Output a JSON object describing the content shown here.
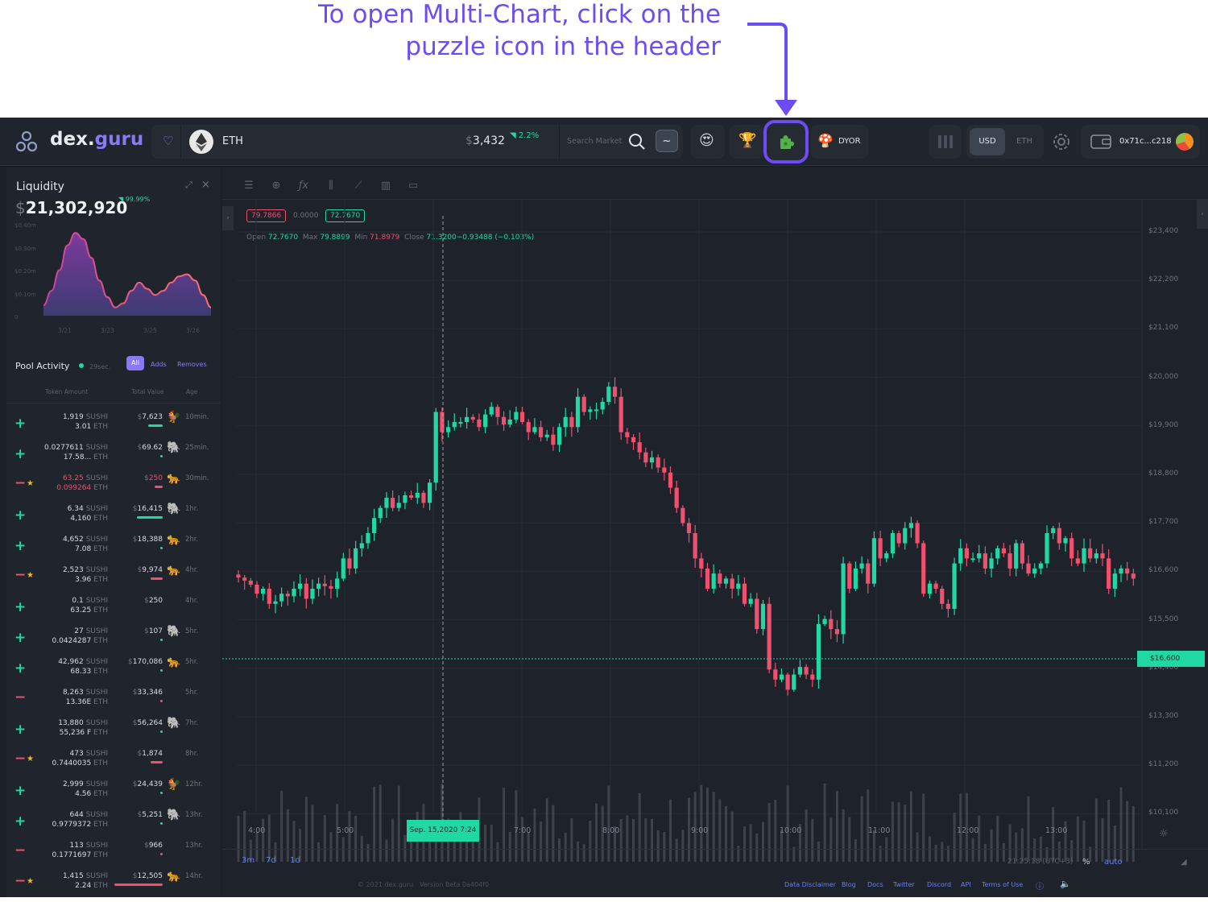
{
  "annotation": {
    "line1": "To open Multi-Chart, click on the",
    "line2": "puzzle  icon in the header",
    "color": "#6b4cf5"
  },
  "header": {
    "logo_main": "dex.",
    "logo_accent": "guru",
    "token": "ETH",
    "price_prefix": "$",
    "price": "3,432",
    "change": "2.2%",
    "search_placeholder": "Search Market",
    "dyor": "DYOR",
    "usd": "USD",
    "eth": "ETH",
    "wallet": "0x71c...c218"
  },
  "liquidity": {
    "title": "Liquidity",
    "currency": "$",
    "value": "21,302,920",
    "change": "99.99%",
    "y_ticks": [
      "$0.40m",
      "$0.30m",
      "$0.20m",
      "$0.10m",
      "0"
    ],
    "x_ticks": [
      "3/21",
      "3/23",
      "3/25",
      "3/26"
    ],
    "series": [
      0.05,
      0.12,
      0.22,
      0.34,
      0.4,
      0.37,
      0.28,
      0.17,
      0.09,
      0.04,
      0.06,
      0.12,
      0.16,
      0.13,
      0.1,
      0.12,
      0.16,
      0.19,
      0.2,
      0.17,
      0.1,
      0.04
    ]
  },
  "pool": {
    "title": "Pool Activity",
    "timer": "29sec.",
    "tab_all": "All",
    "tab_adds": "Adds",
    "tab_removes": "Removes",
    "col_token": "Token Amount",
    "col_total": "Total Value",
    "col_age": "Age",
    "rows": [
      {
        "type": "add",
        "star": false,
        "a1": "1,919",
        "u1": "SUSHI",
        "a2": "3.01",
        "u2": "ETH",
        "cur": "$",
        "val": "7,623",
        "bar": 18,
        "emoji": "🐓",
        "age": "10min."
      },
      {
        "type": "add",
        "star": false,
        "a1": "0.0277611",
        "u1": "SUSHI",
        "a2": "17.58...",
        "u2": "ETH",
        "cur": "$",
        "val": "69.62",
        "bar": 3,
        "emoji": "🐘",
        "age": "25min."
      },
      {
        "type": "remove",
        "star": true,
        "a1": "63.25",
        "u1": "SUSHI",
        "a2": "0.099264",
        "u2": "ETH",
        "cur": "$",
        "val": "250",
        "bar": 10,
        "emoji": "🐆",
        "age": "30min."
      },
      {
        "type": "add",
        "star": false,
        "a1": "6.34",
        "u1": "SUSHI",
        "a2": "4,160",
        "u2": "ETH",
        "cur": "$",
        "val": "16,415",
        "bar": 32,
        "emoji": "🐘",
        "age": "1hr."
      },
      {
        "type": "add",
        "star": false,
        "a1": "4,652",
        "u1": "SUSHI",
        "a2": "7.08",
        "u2": "ETH",
        "cur": "$",
        "val": "18,388",
        "bar": 3,
        "emoji": "🐆",
        "age": "2hr."
      },
      {
        "type": "remove",
        "star": true,
        "a1": "2,523",
        "u1": "SUSHI",
        "a2": "3.96",
        "u2": "ETH",
        "cur": "$",
        "val": "9,974",
        "bar": 15,
        "emoji": "🐆",
        "age": "4hr."
      },
      {
        "type": "add",
        "star": false,
        "a1": "0.1",
        "u1": "SUSHI",
        "a2": "63.25",
        "u2": "ETH",
        "cur": "$",
        "val": "250",
        "bar": 0,
        "emoji": "",
        "age": "4hr."
      },
      {
        "type": "add",
        "star": false,
        "a1": "27",
        "u1": "SUSHI",
        "a2": "0.0424287",
        "u2": "ETH",
        "cur": "$",
        "val": "107",
        "bar": 3,
        "emoji": "🐘",
        "age": "5hr."
      },
      {
        "type": "add",
        "star": false,
        "a1": "42,962",
        "u1": "SUSHI",
        "a2": "68.33",
        "u2": "ETH",
        "cur": "$",
        "val": "170,086",
        "bar": 3,
        "emoji": "🐆",
        "age": "5hr."
      },
      {
        "type": "remove",
        "star": false,
        "a1": "8,263",
        "u1": "SUSHI",
        "a2": "13.36E",
        "u2": "ETH",
        "cur": "$",
        "val": "33,346",
        "bar": 3,
        "emoji": "",
        "age": "5hr."
      },
      {
        "type": "add",
        "star": false,
        "a1": "13,880",
        "u1": "SUSHI",
        "a2": "55,236 F",
        "u2": "ETH",
        "cur": "$",
        "val": "56,264",
        "bar": 3,
        "emoji": "🐘",
        "age": "7hr."
      },
      {
        "type": "remove",
        "star": true,
        "a1": "473",
        "u1": "SUSHI",
        "a2": "0.7440035",
        "u2": "ETH",
        "cur": "$",
        "val": "1,874",
        "bar": 15,
        "emoji": "",
        "age": "8hr."
      },
      {
        "type": "add",
        "star": false,
        "a1": "2,999",
        "u1": "SUSHI",
        "a2": "4.56",
        "u2": "ETH",
        "cur": "$",
        "val": "24,439",
        "bar": 3,
        "emoji": "🐓",
        "age": "12hr."
      },
      {
        "type": "add",
        "star": false,
        "a1": "644",
        "u1": "SUSHI",
        "a2": "0.9779372",
        "u2": "ETH",
        "cur": "$",
        "val": "5,251",
        "bar": 3,
        "emoji": "🐘",
        "age": "13hr."
      },
      {
        "type": "remove",
        "star": false,
        "a1": "113",
        "u1": "SUSHI",
        "a2": "0.1771697",
        "u2": "ETH",
        "cur": "$",
        "val": "966",
        "bar": 3,
        "emoji": "",
        "age": "13hr."
      },
      {
        "type": "remove",
        "star": true,
        "a1": "1,415",
        "u1": "SUSHI",
        "a2": "2.24",
        "u2": "ETH",
        "cur": "$",
        "val": "12,505",
        "bar": 60,
        "emoji": "🐆",
        "age": "14hr."
      }
    ]
  },
  "chart": {
    "box_red": "79.7866",
    "box_mid": "0.0000",
    "box_green": "72.7670",
    "ohlc_open_label": "Open",
    "ohlc_open": "72.7670",
    "ohlc_max_label": "Max",
    "ohlc_max": "79.8899",
    "ohlc_min_label": "Min",
    "ohlc_min": "71.8979",
    "ohlc_close_label": "Close",
    "ohlc_close": "71.3200−0.93488 (−0.103%)",
    "crosshair_label": "Sep. 15,2020 7:24",
    "price_label": "$16,600",
    "ranges": [
      "3m",
      "7d",
      "1d"
    ],
    "time": "21:25:18 (UTC+3)",
    "pct": "%",
    "auto": "auto",
    "copyright": "© 2021 dex.guru",
    "version": "Version Beta 0a404f0",
    "footer_links": [
      "Data Disclaimer",
      "Blog",
      "Docs",
      "Twitter",
      "Discord",
      "API",
      "Terms of Use"
    ]
  },
  "chart_data": {
    "type": "candlestick",
    "y_ticks": [
      "$23,400",
      "$22,200",
      "$21,100",
      "$20,000",
      "$19,900",
      "$18,800",
      "$17,700",
      "$16,600",
      "$15,500",
      "$14,400",
      "$13,300",
      "$11,200",
      "$10,100"
    ],
    "x_ticks": [
      "4:00",
      "5:00",
      "7:00",
      "8:00",
      "9:00",
      "10:00",
      "11:00",
      "12:00",
      "13:00"
    ],
    "colors": {
      "up": "#1fd8a4",
      "down": "#f0506e"
    },
    "closes": [
      16620,
      16560,
      16480,
      16300,
      16400,
      16100,
      16150,
      16300,
      16250,
      16400,
      16500,
      16200,
      16400,
      16500,
      16450,
      16400,
      16600,
      17000,
      16800,
      17200,
      17300,
      17500,
      17800,
      18000,
      18200,
      18000,
      18100,
      18250,
      18200,
      18300,
      18100,
      18500,
      19900,
      19500,
      19600,
      19700,
      19700,
      19800,
      19750,
      19600,
      19850,
      20000,
      19800,
      19650,
      19750,
      19900,
      19700,
      19500,
      19600,
      19400,
      19450,
      19250,
      19600,
      19800,
      19600,
      20200,
      19900,
      19950,
      19950,
      20100,
      20400,
      20200,
      19500,
      19400,
      19300,
      19100,
      18900,
      19000,
      18800,
      18700,
      18400,
      18000,
      17700,
      17500,
      17000,
      16800,
      16400,
      16700,
      16500,
      16600,
      16400,
      16500,
      16100,
      16200,
      15600,
      16100,
      14800,
      14600,
      14700,
      14400,
      14700,
      14850,
      14700,
      14600,
      15700,
      15800,
      15600,
      15500,
      16900,
      16400,
      16800,
      16900,
      16500,
      17400,
      17000,
      17100,
      17500,
      17300,
      17600,
      17700,
      17300,
      16300,
      16500,
      16400,
      16100,
      16000,
      16900,
      17200,
      17000,
      17000,
      17100,
      16800,
      17000,
      17200,
      17100,
      16800,
      17300,
      16900,
      16700,
      16800,
      16900,
      17500,
      17600,
      17300,
      17400,
      17000,
      16900,
      17200,
      17000,
      17100,
      17000,
      16400,
      16700,
      16800,
      16700,
      16600
    ]
  }
}
